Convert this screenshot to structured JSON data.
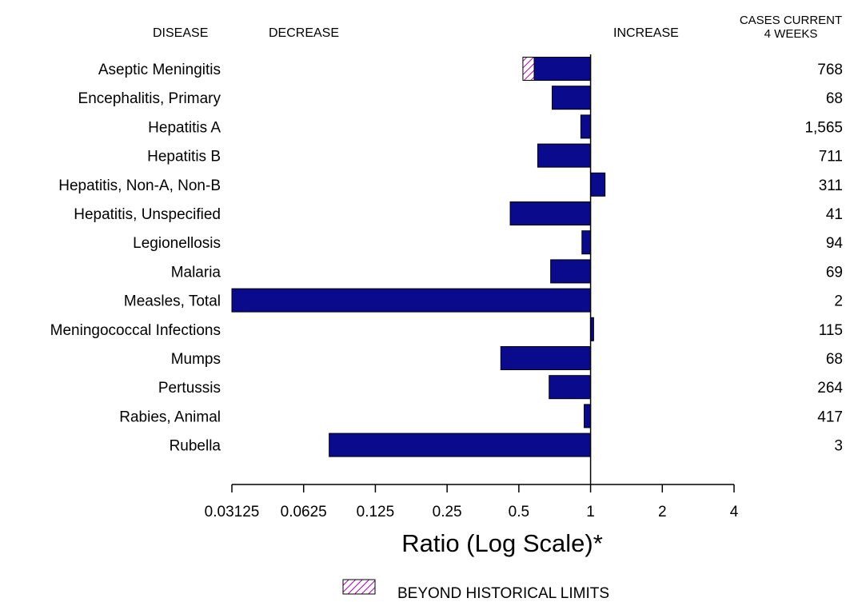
{
  "header": {
    "disease": "DISEASE",
    "decrease": "DECREASE",
    "increase": "INCREASE",
    "cases_line1": "CASES CURRENT",
    "cases_line2": "4 WEEKS"
  },
  "legend": {
    "label": "BEYOND HISTORICAL LIMITS"
  },
  "colors": {
    "bar": "#0a0a8c",
    "hatch": "#b000b0"
  },
  "chart_data": {
    "type": "bar",
    "orientation": "horizontal",
    "xscale": "log2",
    "xlim": [
      0.03125,
      4
    ],
    "xticks": [
      "0.03125",
      "0.0625",
      "0.125",
      "0.25",
      "0.5",
      "1",
      "2",
      "4"
    ],
    "xlabel": "Ratio (Log Scale)*",
    "baseline": 1,
    "rows": [
      {
        "disease": "Aseptic Meningitis",
        "ratio": 0.52,
        "beyond_limit_from": 0.58,
        "cases": "768"
      },
      {
        "disease": "Encephalitis, Primary",
        "ratio": 0.69,
        "cases": "68"
      },
      {
        "disease": "Hepatitis A",
        "ratio": 0.91,
        "cases": "1,565"
      },
      {
        "disease": "Hepatitis B",
        "ratio": 0.6,
        "cases": "711"
      },
      {
        "disease": "Hepatitis, Non-A, Non-B",
        "ratio": 1.15,
        "cases": "311"
      },
      {
        "disease": "Hepatitis, Unspecified",
        "ratio": 0.46,
        "cases": "41"
      },
      {
        "disease": "Legionellosis",
        "ratio": 0.92,
        "cases": "94"
      },
      {
        "disease": "Malaria",
        "ratio": 0.68,
        "cases": "69"
      },
      {
        "disease": "Measles, Total",
        "ratio": 0.03125,
        "cases": "2"
      },
      {
        "disease": "Meningococcal Infections",
        "ratio": 1.03,
        "cases": "115"
      },
      {
        "disease": "Mumps",
        "ratio": 0.42,
        "cases": "68"
      },
      {
        "disease": "Pertussis",
        "ratio": 0.67,
        "cases": "264"
      },
      {
        "disease": "Rabies, Animal",
        "ratio": 0.94,
        "cases": "417"
      },
      {
        "disease": "Rubella",
        "ratio": 0.08,
        "cases": "3"
      }
    ]
  }
}
